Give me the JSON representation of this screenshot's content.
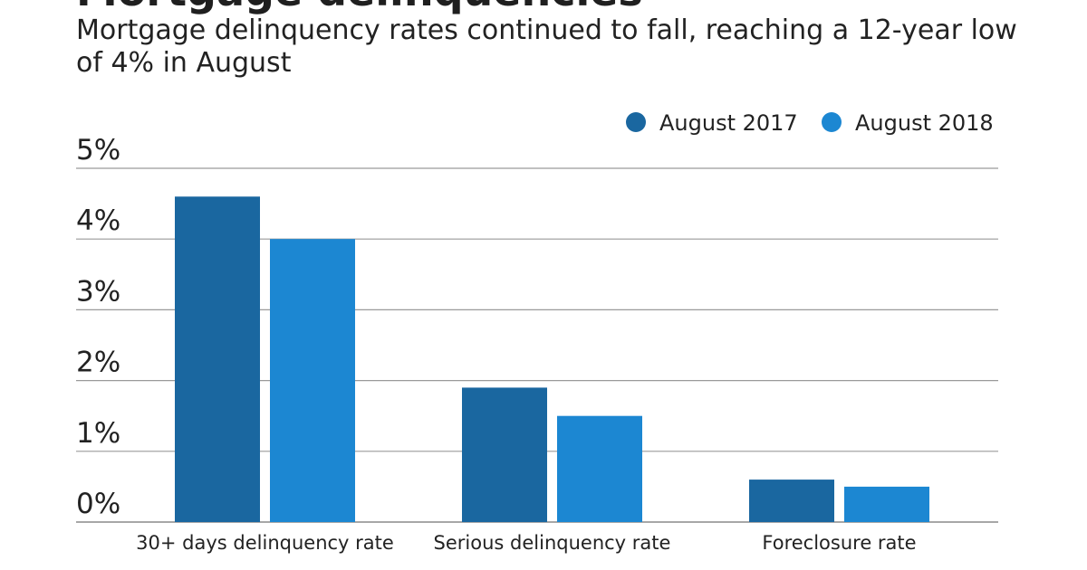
{
  "header": {
    "title": "Mortgage delinquencies",
    "subtitle": "Mortgage delinquency rates continued to fall, reaching a 12-year low of 4% in August"
  },
  "chart_data": {
    "type": "bar",
    "categories": [
      "30+ days delinquency rate",
      "Serious delinquency rate",
      "Foreclosure rate"
    ],
    "series": [
      {
        "name": "August 2017",
        "values": [
          4.6,
          1.9,
          0.6
        ],
        "color": "#1a67a0"
      },
      {
        "name": "August 2018",
        "values": [
          4.0,
          1.5,
          0.5
        ],
        "color": "#1c87d2"
      }
    ],
    "y_ticks": [
      {
        "value": 0,
        "label": "0%"
      },
      {
        "value": 1,
        "label": "1%"
      },
      {
        "value": 2,
        "label": "2%"
      },
      {
        "value": 3,
        "label": "3%"
      },
      {
        "value": 4,
        "label": "4%"
      },
      {
        "value": 5,
        "label": "5%"
      }
    ],
    "ylim": [
      0,
      5
    ],
    "grid": true,
    "legend_position": "top-right",
    "xlabel": "",
    "ylabel": ""
  }
}
